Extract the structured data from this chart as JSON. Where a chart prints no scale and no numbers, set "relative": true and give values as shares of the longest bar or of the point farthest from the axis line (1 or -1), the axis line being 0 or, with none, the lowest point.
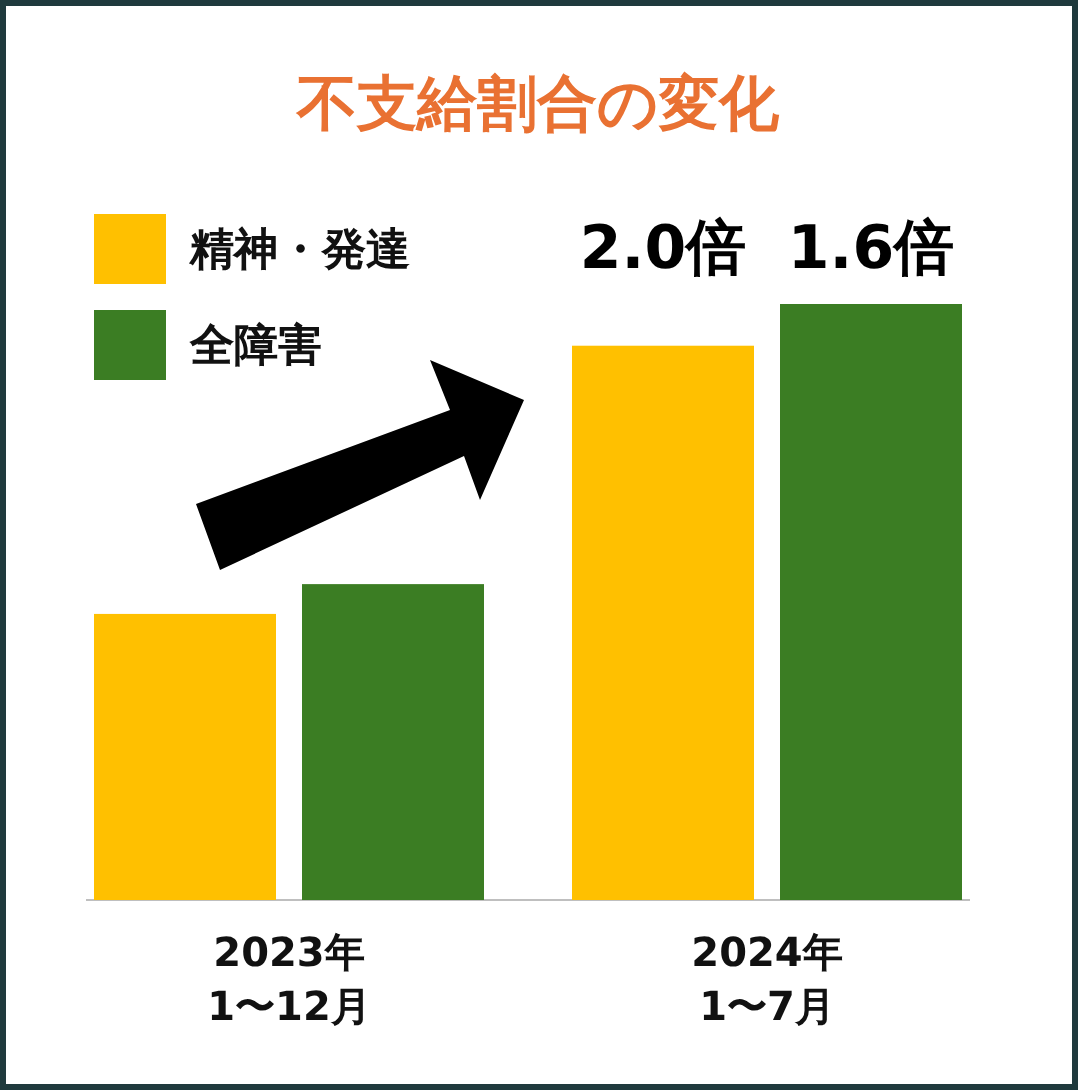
{
  "chart_data": {
    "type": "bar",
    "title": "不支給割合の変化",
    "categories": [
      "2023年\n1〜12月",
      "2024年\n1〜7月"
    ],
    "series": [
      {
        "name": "精神・発達",
        "color": "#ffc000",
        "values": [
          0.48,
          0.93
        ]
      },
      {
        "name": "全障害",
        "color": "#3b7d23",
        "values": [
          0.53,
          1
        ]
      }
    ],
    "relative": true,
    "legend": "top left",
    "annotations": [
      "2.0倍",
      "1.6倍"
    ]
  }
}
